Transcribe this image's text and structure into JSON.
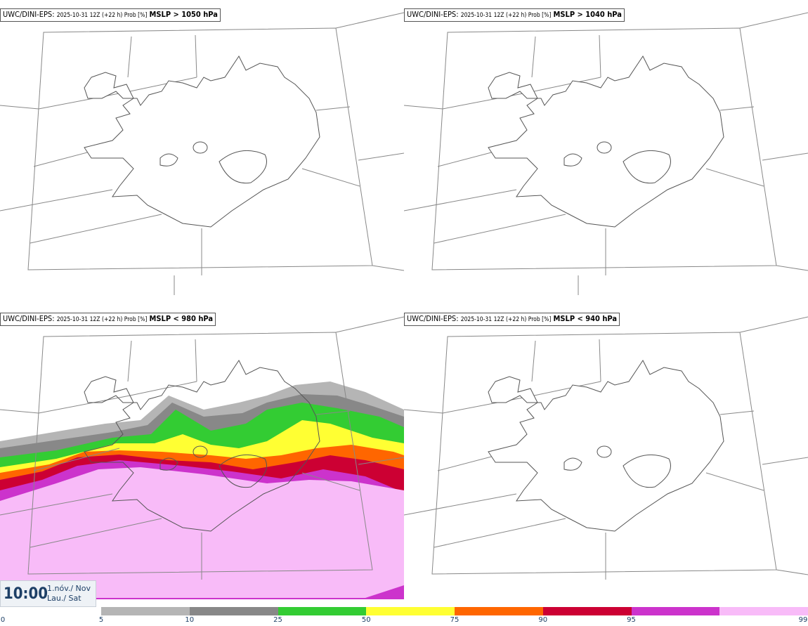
{
  "panels": [
    {
      "model": "UWC/DINI-EPS",
      "run": "2025-10-31 12Z (+22 h) Prob [%]",
      "threshold": "MSLP > 1050 hPa"
    },
    {
      "model": "UWC/DINI-EPS",
      "run": "2025-10-31 12Z (+22 h) Prob [%]",
      "threshold": "MSLP > 1040 hPa"
    },
    {
      "model": "UWC/DINI-EPS",
      "run": "2025-10-31 12Z (+22 h) Prob [%]",
      "threshold": "MSLP < 980 hPa"
    },
    {
      "model": "UWC/DINI-EPS",
      "run": "2025-10-31 12Z (+22 h) Prob [%]",
      "threshold": "MSLP < 940 hPa"
    }
  ],
  "valid_time": {
    "time": "10:00",
    "date_line1": "1.nóv./ Nov",
    "date_line2": "Lau./ Sat"
  },
  "colorbar": {
    "labels": [
      "0",
      "5",
      "10",
      "25",
      "50",
      "75",
      "90",
      "95",
      "99"
    ],
    "colors": [
      "#b5b5b5",
      "#888888",
      "#33cc33",
      "#ffff33",
      "#ff6600",
      "#cc0033",
      "#cc33cc",
      "#f8bbf8"
    ]
  }
}
